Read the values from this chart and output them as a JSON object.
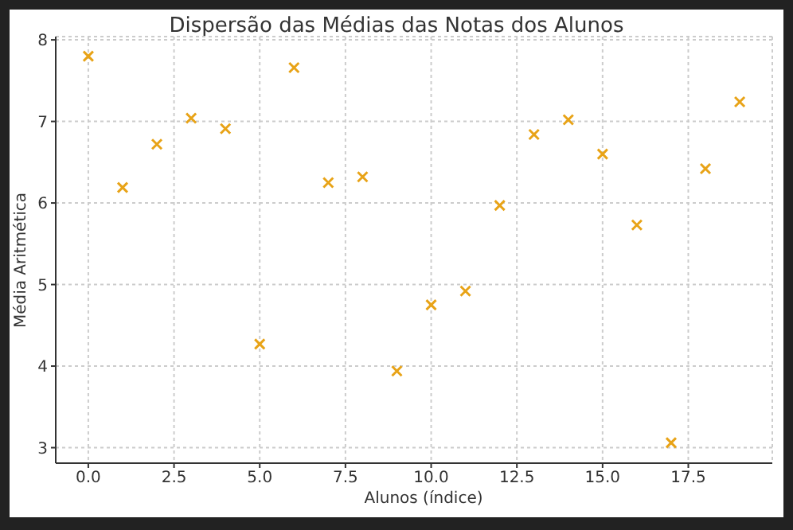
{
  "chart_data": {
    "type": "scatter",
    "title": "Dispersão das Médias das Notas dos Alunos",
    "xlabel": "Alunos (índice)",
    "ylabel": "Média Aritmética",
    "x": [
      0,
      1,
      2,
      3,
      4,
      5,
      6,
      7,
      8,
      9,
      10,
      11,
      12,
      13,
      14,
      15,
      16,
      17,
      18,
      19
    ],
    "values": [
      7.8,
      6.19,
      6.72,
      7.04,
      6.91,
      4.27,
      7.66,
      6.25,
      6.32,
      3.94,
      4.75,
      4.92,
      5.97,
      6.84,
      7.02,
      6.6,
      5.73,
      3.06,
      6.42,
      7.24
    ],
    "color": "#e8a317",
    "marker": "cross",
    "grid": true,
    "xlim": [
      -0.95,
      19.95
    ],
    "xticks": [
      {
        "value": 0,
        "label": "0.0"
      },
      {
        "value": 2.5,
        "label": "2.5"
      },
      {
        "value": 5,
        "label": "5.0"
      },
      {
        "value": 7.5,
        "label": "7.5"
      },
      {
        "value": 10,
        "label": "10.0"
      },
      {
        "value": 12.5,
        "label": "12.5"
      },
      {
        "value": 15,
        "label": "15.0"
      },
      {
        "value": 17.5,
        "label": "17.5"
      }
    ],
    "ylim": [
      2.81,
      8.04
    ],
    "yticks": [
      3,
      4,
      5,
      6,
      7,
      8
    ]
  }
}
